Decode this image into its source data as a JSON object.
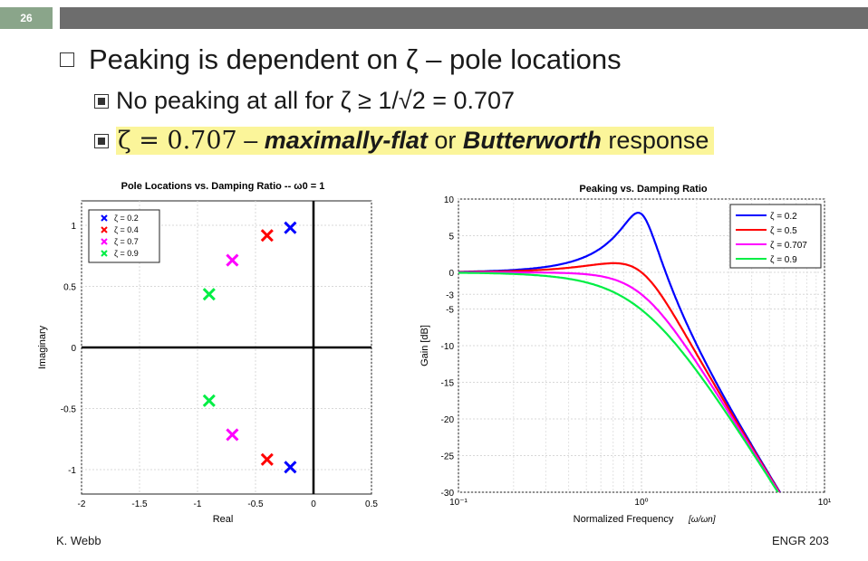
{
  "slide": {
    "number": "26",
    "footer_left": "K. Webb",
    "footer_right": "ENGR 203"
  },
  "bullets": {
    "main": "Peaking is dependent on ζ – pole locations",
    "sub1": "No peaking at all for ζ ≥ 1/√2 = 0.707",
    "sub2_math": "ζ = 0.707",
    "sub2_dash": " – ",
    "sub2_em": "maximally-flat",
    "sub2_or": " or ",
    "sub2_bold": "Butterworth",
    "sub2_tail": " response"
  },
  "colors": {
    "blue": "#0000ff",
    "red": "#ff0000",
    "magenta": "#ff00ff",
    "green": "#00ee44",
    "highlight": "#fbf59a",
    "header": "#6d6d6d",
    "slide_num": "#8aa58a"
  },
  "chart_data": [
    {
      "type": "scatter",
      "title": "Pole Locations vs. Damping Ratio -- ω0 = 1",
      "xlabel": "Real",
      "ylabel": "Imaginary",
      "xlim": [
        -2,
        0.5
      ],
      "ylim": [
        -1.2,
        1.2
      ],
      "xticks": [
        -2,
        -1.5,
        -1,
        -0.5,
        0,
        0.5
      ],
      "xtick_labels": [
        "-2",
        "-1.5",
        "-1",
        "-0.5",
        "0",
        "0.5"
      ],
      "yticks": [
        1,
        0.5,
        0,
        -0.5,
        -1
      ],
      "ytick_labels": [
        "1",
        "0.5",
        "0",
        "-0.5",
        "-1"
      ],
      "grid": true,
      "legend_position": "top-left",
      "series": [
        {
          "name": "ζ = 0.2",
          "color": "#0000ff",
          "points": [
            [
              -0.2,
              0.98
            ],
            [
              -0.2,
              -0.98
            ]
          ]
        },
        {
          "name": "ζ = 0.4",
          "color": "#ff0000",
          "points": [
            [
              -0.4,
              0.917
            ],
            [
              -0.4,
              -0.917
            ]
          ]
        },
        {
          "name": "ζ = 0.7",
          "color": "#ff00ff",
          "points": [
            [
              -0.7,
              0.714
            ],
            [
              -0.7,
              -0.714
            ]
          ]
        },
        {
          "name": "ζ = 0.9",
          "color": "#00ee44",
          "points": [
            [
              -0.9,
              0.436
            ],
            [
              -0.9,
              -0.436
            ]
          ]
        }
      ]
    },
    {
      "type": "line",
      "title": "Peaking vs. Damping Ratio",
      "xlabel": "Normalized Frequency",
      "xlabel_units": "[ω/ωn]",
      "ylabel": "Gain [dB]",
      "xscale": "log",
      "xlim": [
        0.1,
        10
      ],
      "ylim": [
        -30,
        10
      ],
      "xtick_labels": [
        "10⁻¹",
        "10⁰",
        "10¹"
      ],
      "yticks": [
        10,
        5,
        0,
        -3,
        -5,
        -10,
        -15,
        -20,
        -25,
        -30
      ],
      "ytick_labels": [
        "10",
        "5",
        "0",
        "-3",
        "-5",
        "-10",
        "-15",
        "-20",
        "-25",
        "-30"
      ],
      "grid": true,
      "legend_position": "top-right",
      "series": [
        {
          "name": "ζ = 0.2",
          "zeta": 0.2,
          "color": "#0000ff"
        },
        {
          "name": "ζ = 0.5",
          "zeta": 0.5,
          "color": "#ff0000"
        },
        {
          "name": "ζ = 0.707",
          "zeta": 0.707,
          "color": "#ff00ff"
        },
        {
          "name": "ζ = 0.9",
          "zeta": 0.9,
          "color": "#00ee44"
        }
      ]
    }
  ]
}
